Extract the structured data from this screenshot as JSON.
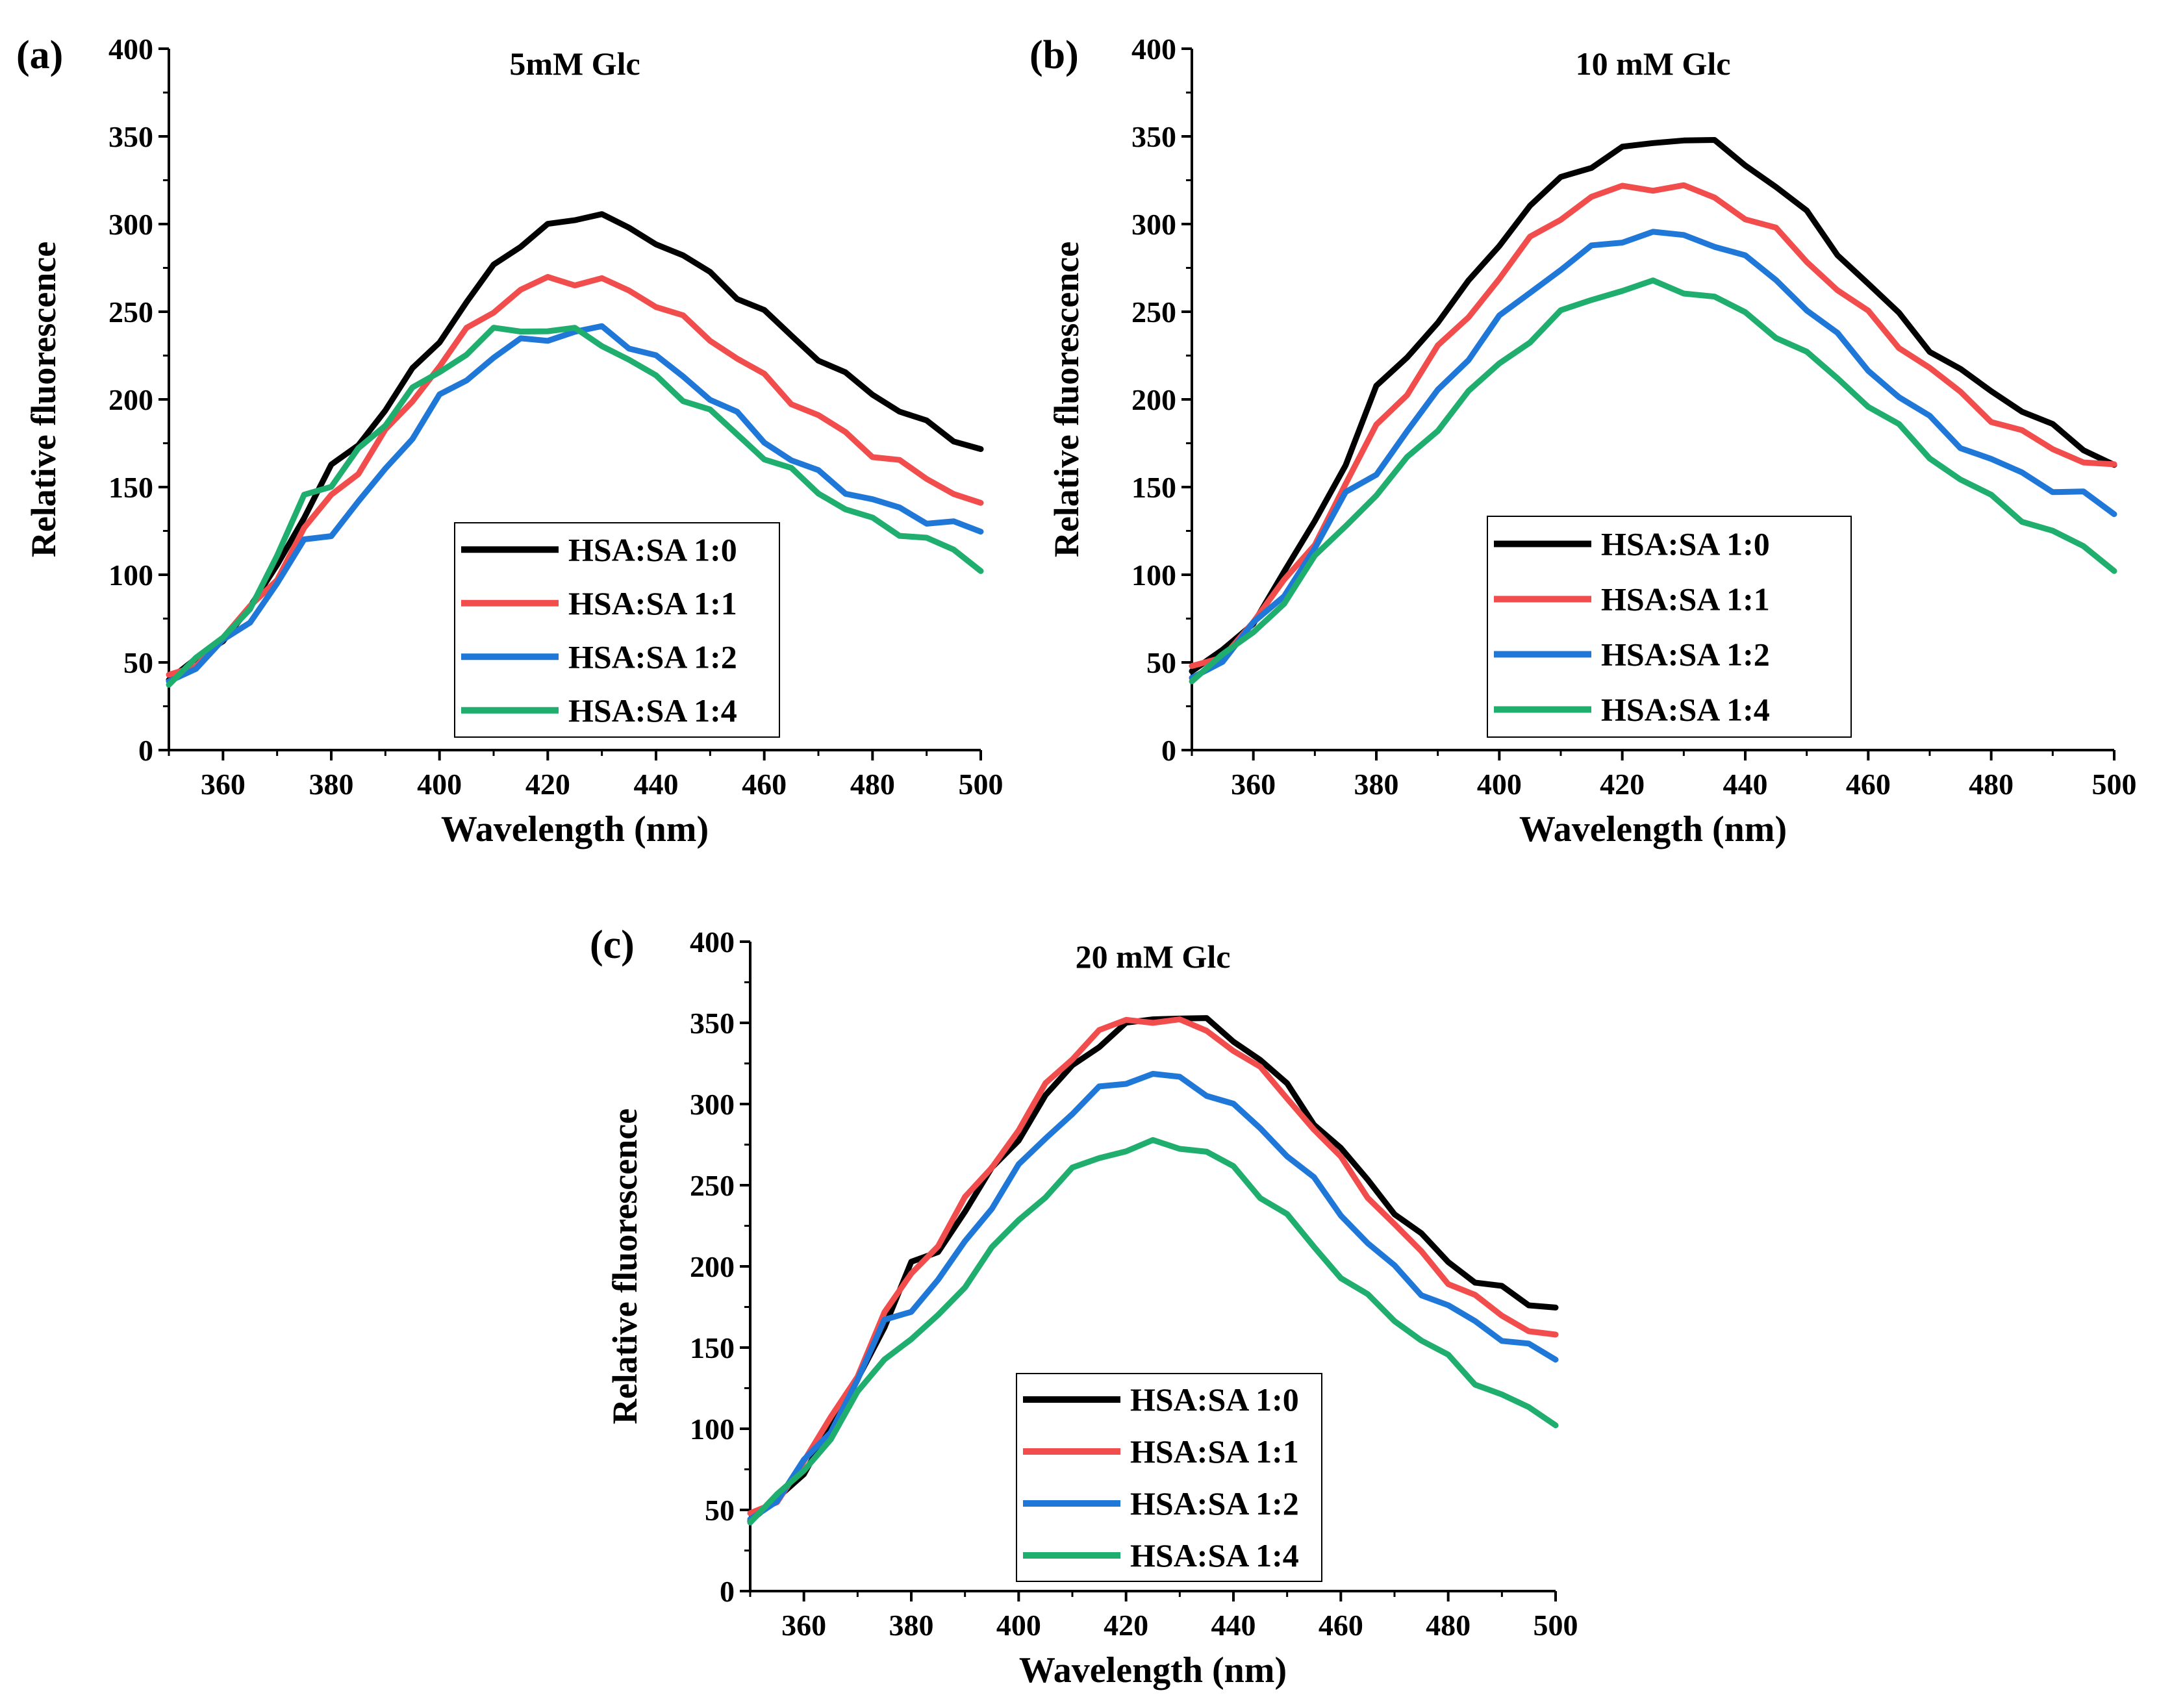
{
  "legend_labels": [
    "HSA:SA 1:0",
    "HSA:SA 1:1",
    "HSA:SA 1:2",
    "HSA:SA 1:4"
  ],
  "series_colors": [
    "#000000",
    "#f24d4d",
    "#1f78d8",
    "#1fae6e"
  ],
  "chart_data": [
    {
      "panel_label": "(a)",
      "type": "line",
      "title": "5mM Glc",
      "xlabel": "Wavelength (nm)",
      "ylabel": "Relative fluorescence",
      "xlim": [
        350,
        500
      ],
      "ylim": [
        0,
        400
      ],
      "xticks": [
        360,
        380,
        400,
        420,
        440,
        460,
        480,
        500
      ],
      "yticks": [
        0,
        50,
        100,
        150,
        200,
        250,
        300,
        350,
        400
      ],
      "grid": false,
      "legend_position": "lower-center",
      "x": [
        350,
        355,
        360,
        365,
        370,
        375,
        380,
        385,
        390,
        395,
        400,
        405,
        410,
        415,
        420,
        425,
        430,
        435,
        440,
        445,
        450,
        455,
        460,
        465,
        470,
        475,
        480,
        485,
        490,
        495,
        500
      ],
      "series": [
        {
          "name": "HSA:SA 1:0",
          "values": [
            40,
            50,
            65,
            80,
            105,
            135,
            160,
            175,
            195,
            215,
            235,
            255,
            275,
            290,
            298,
            302,
            308,
            295,
            290,
            283,
            270,
            260,
            250,
            235,
            225,
            213,
            203,
            195,
            185,
            178,
            172
          ]
        },
        {
          "name": "HSA:SA 1:1",
          "values": [
            40,
            50,
            64,
            80,
            100,
            125,
            145,
            160,
            180,
            200,
            220,
            238,
            252,
            262,
            268,
            268,
            267,
            262,
            255,
            245,
            235,
            224,
            212,
            200,
            190,
            180,
            170,
            163,
            155,
            148,
            138
          ]
        },
        {
          "name": "HSA:SA 1:2",
          "values": [
            40,
            48,
            60,
            75,
            95,
            118,
            125,
            140,
            160,
            180,
            200,
            212,
            225,
            232,
            236,
            238,
            240,
            232,
            223,
            213,
            202,
            190,
            177,
            166,
            157,
            149,
            142,
            137,
            132,
            128,
            125
          ]
        },
        {
          "name": "HSA:SA 1:4",
          "values": [
            40,
            50,
            65,
            82,
            108,
            148,
            150,
            170,
            188,
            205,
            215,
            228,
            238,
            240,
            240,
            238,
            233,
            222,
            212,
            202,
            192,
            180,
            168,
            158,
            148,
            138,
            130,
            125,
            120,
            113,
            105
          ]
        }
      ]
    },
    {
      "panel_label": "(b)",
      "type": "line",
      "title": "10 mM Glc",
      "xlabel": "Wavelength (nm)",
      "ylabel": "Relative fluorescence",
      "xlim": [
        350,
        500
      ],
      "ylim": [
        0,
        400
      ],
      "xticks": [
        360,
        380,
        400,
        420,
        440,
        460,
        480,
        500
      ],
      "yticks": [
        0,
        50,
        100,
        150,
        200,
        250,
        300,
        350,
        400
      ],
      "grid": false,
      "legend_position": "lower-center",
      "x": [
        350,
        355,
        360,
        365,
        370,
        375,
        380,
        385,
        390,
        395,
        400,
        405,
        410,
        415,
        420,
        425,
        430,
        435,
        440,
        445,
        450,
        455,
        460,
        465,
        470,
        475,
        480,
        485,
        490,
        495,
        500
      ],
      "series": [
        {
          "name": "HSA:SA 1:0",
          "values": [
            45,
            55,
            75,
            100,
            130,
            165,
            205,
            225,
            245,
            265,
            290,
            310,
            325,
            335,
            342,
            346,
            350,
            345,
            335,
            322,
            305,
            285,
            265,
            248,
            230,
            215,
            205,
            195,
            183,
            173,
            163
          ]
        },
        {
          "name": "HSA:SA 1:1",
          "values": [
            45,
            55,
            73,
            95,
            120,
            150,
            185,
            205,
            228,
            248,
            270,
            290,
            305,
            315,
            320,
            322,
            320,
            315,
            305,
            295,
            280,
            263,
            248,
            232,
            217,
            203,
            190,
            180,
            172,
            166,
            160
          ]
        },
        {
          "name": "HSA:SA 1:2",
          "values": [
            42,
            52,
            70,
            90,
            115,
            145,
            160,
            180,
            205,
            225,
            245,
            262,
            275,
            285,
            292,
            295,
            292,
            290,
            280,
            268,
            253,
            235,
            218,
            202,
            188,
            175,
            165,
            157,
            150,
            145,
            135
          ]
        },
        {
          "name": "HSA:SA 1:4",
          "values": [
            42,
            52,
            68,
            85,
            108,
            130,
            145,
            165,
            185,
            203,
            220,
            235,
            248,
            258,
            263,
            265,
            263,
            258,
            248,
            238,
            225,
            212,
            198,
            183,
            168,
            155,
            143,
            133,
            124,
            115,
            105
          ]
        }
      ]
    },
    {
      "panel_label": "(c)",
      "type": "line",
      "title": "20 mM Glc",
      "xlabel": "Wavelength (nm)",
      "ylabel": "Relative fluorescence",
      "xlim": [
        350,
        500
      ],
      "ylim": [
        0,
        400
      ],
      "xticks": [
        360,
        380,
        400,
        420,
        440,
        460,
        480,
        500
      ],
      "yticks": [
        0,
        50,
        100,
        150,
        200,
        250,
        300,
        350,
        400
      ],
      "grid": false,
      "legend_position": "lower-center",
      "x": [
        350,
        355,
        360,
        365,
        370,
        375,
        380,
        385,
        390,
        395,
        400,
        405,
        410,
        415,
        420,
        425,
        430,
        435,
        440,
        445,
        450,
        455,
        460,
        465,
        470,
        475,
        480,
        485,
        490,
        495,
        500
      ],
      "series": [
        {
          "name": "HSA:SA 1:0",
          "values": [
            43,
            55,
            75,
            100,
            130,
            165,
            200,
            210,
            235,
            258,
            280,
            305,
            322,
            338,
            348,
            352,
            355,
            350,
            340,
            328,
            310,
            290,
            272,
            252,
            235,
            218,
            203,
            192,
            185,
            178,
            175
          ]
        },
        {
          "name": "HSA:SA 1:1",
          "values": [
            45,
            57,
            80,
            105,
            135,
            170,
            195,
            215,
            240,
            262,
            285,
            310,
            330,
            345,
            350,
            353,
            350,
            345,
            335,
            320,
            305,
            285,
            265,
            245,
            225,
            208,
            192,
            180,
            170,
            162,
            155
          ]
        },
        {
          "name": "HSA:SA 1:2",
          "values": [
            45,
            57,
            78,
            100,
            130,
            165,
            175,
            190,
            215,
            238,
            260,
            280,
            295,
            308,
            315,
            318,
            315,
            308,
            298,
            285,
            270,
            252,
            233,
            215,
            198,
            185,
            175,
            165,
            157,
            150,
            143
          ]
        },
        {
          "name": "HSA:SA 1:4",
          "values": [
            45,
            57,
            75,
            95,
            120,
            145,
            155,
            168,
            190,
            210,
            228,
            245,
            258,
            268,
            272,
            275,
            275,
            270,
            260,
            245,
            230,
            212,
            195,
            180,
            168,
            155,
            143,
            130,
            120,
            112,
            105
          ]
        }
      ]
    }
  ]
}
